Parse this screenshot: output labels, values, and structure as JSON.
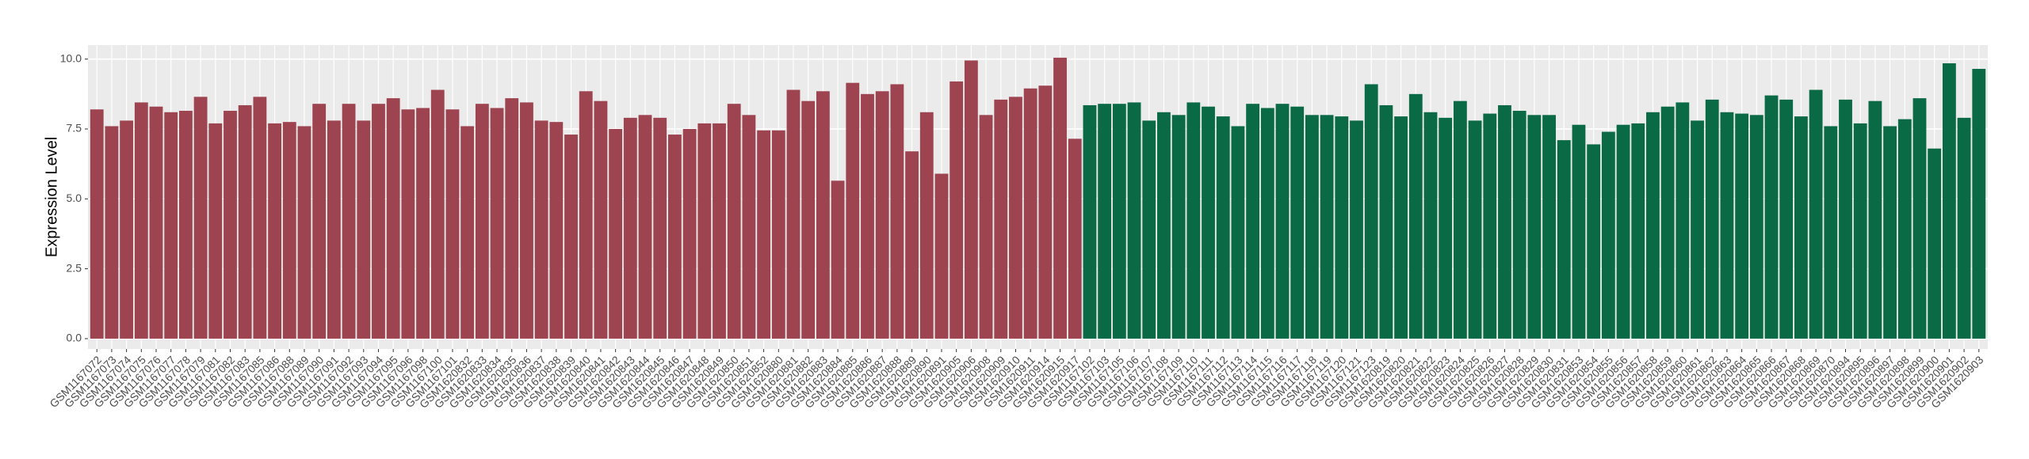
{
  "chart_data": {
    "type": "bar",
    "y_label": "Expression Level",
    "categories": [
      "GSM1167072",
      "GSM1167073",
      "GSM1167074",
      "GSM1167075",
      "GSM1167076",
      "GSM1167077",
      "GSM1167078",
      "GSM1167079",
      "GSM1167081",
      "GSM1167082",
      "GSM1167083",
      "GSM1167085",
      "GSM1167086",
      "GSM1167088",
      "GSM1167089",
      "GSM1167090",
      "GSM1167091",
      "GSM1167092",
      "GSM1167093",
      "GSM1167094",
      "GSM1167095",
      "GSM1167096",
      "GSM1167098",
      "GSM1167100",
      "GSM1167101",
      "GSM1620832",
      "GSM1620833",
      "GSM1620834",
      "GSM1620835",
      "GSM1620836",
      "GSM1620837",
      "GSM1620838",
      "GSM1620839",
      "GSM1620840",
      "GSM1620841",
      "GSM1620842",
      "GSM1620843",
      "GSM1620844",
      "GSM1620845",
      "GSM1620846",
      "GSM1620847",
      "GSM1620848",
      "GSM1620849",
      "GSM1620850",
      "GSM1620851",
      "GSM1620852",
      "GSM1620880",
      "GSM1620881",
      "GSM1620882",
      "GSM1620883",
      "GSM1620884",
      "GSM1620885",
      "GSM1620886",
      "GSM1620887",
      "GSM1620888",
      "GSM1620889",
      "GSM1620890",
      "GSM1620891",
      "GSM1620905",
      "GSM1620906",
      "GSM1620908",
      "GSM1620909",
      "GSM1620910",
      "GSM1620911",
      "GSM1620914",
      "GSM1620915",
      "GSM1620917",
      "GSM1167102",
      "GSM1167103",
      "GSM1167105",
      "GSM1167106",
      "GSM1167107",
      "GSM1167108",
      "GSM1167109",
      "GSM1167110",
      "GSM1167111",
      "GSM1167112",
      "GSM1167113",
      "GSM1167114",
      "GSM1167115",
      "GSM1167116",
      "GSM1167117",
      "GSM1167118",
      "GSM1167119",
      "GSM1167120",
      "GSM1167121",
      "GSM1167123",
      "GSM1620819",
      "GSM1620820",
      "GSM1620821",
      "GSM1620822",
      "GSM1620823",
      "GSM1620824",
      "GSM1620825",
      "GSM1620826",
      "GSM1620827",
      "GSM1620828",
      "GSM1620829",
      "GSM1620830",
      "GSM1620831",
      "GSM1620853",
      "GSM1620854",
      "GSM1620855",
      "GSM1620856",
      "GSM1620857",
      "GSM1620858",
      "GSM1620859",
      "GSM1620860",
      "GSM1620861",
      "GSM1620862",
      "GSM1620863",
      "GSM1620864",
      "GSM1620865",
      "GSM1620866",
      "GSM1620867",
      "GSM1620868",
      "GSM1620869",
      "GSM1620870",
      "GSM1620894",
      "GSM1620895",
      "GSM1620896",
      "GSM1620897",
      "GSM1620898",
      "GSM1620899",
      "GSM1620900",
      "GSM1620901",
      "GSM1620902",
      "GSM1620903"
    ],
    "series": [
      {
        "color": "#9e4350",
        "values": [
          8.2,
          7.6,
          7.8,
          8.45,
          8.3,
          8.1,
          8.15,
          8.65,
          7.7,
          8.15,
          8.35,
          8.65,
          7.7,
          7.75,
          7.6,
          8.4,
          7.8,
          8.4,
          7.8,
          8.4,
          8.6,
          8.2,
          8.25,
          8.9,
          8.2,
          7.6,
          8.4,
          8.25,
          8.6,
          8.45,
          7.8,
          7.75,
          7.3,
          8.85,
          8.5,
          7.5,
          7.9,
          8.0,
          7.9,
          7.3,
          7.5,
          7.7,
          7.7,
          8.4,
          8.0,
          7.45,
          7.45,
          8.9,
          8.5,
          8.85,
          5.65,
          9.15,
          8.75,
          8.85,
          9.1,
          6.7,
          8.1,
          5.9,
          9.2,
          9.95,
          8.0,
          8.55,
          8.65,
          8.95,
          9.05,
          10.05,
          7.15,
          null,
          null,
          null,
          null,
          null,
          null,
          null,
          null,
          null,
          null,
          null,
          null,
          null,
          null,
          null,
          null,
          null,
          null,
          null,
          null,
          null,
          null,
          null,
          null,
          null,
          null,
          null,
          null,
          null,
          null,
          null,
          null,
          null,
          null,
          null,
          null,
          null,
          null,
          null,
          null,
          null,
          null,
          null,
          null,
          null,
          null,
          null,
          null,
          null,
          null,
          null,
          null,
          null,
          null,
          null,
          null,
          null,
          null,
          null,
          null,
          null
        ]
      },
      {
        "color": "#0b6a46",
        "values": [
          null,
          null,
          null,
          null,
          null,
          null,
          null,
          null,
          null,
          null,
          null,
          null,
          null,
          null,
          null,
          null,
          null,
          null,
          null,
          null,
          null,
          null,
          null,
          null,
          null,
          null,
          null,
          null,
          null,
          null,
          null,
          null,
          null,
          null,
          null,
          null,
          null,
          null,
          null,
          null,
          null,
          null,
          null,
          null,
          null,
          null,
          null,
          null,
          null,
          null,
          null,
          null,
          null,
          null,
          null,
          null,
          null,
          null,
          null,
          null,
          null,
          null,
          null,
          null,
          null,
          null,
          null,
          8.35,
          8.4,
          8.4,
          8.45,
          7.8,
          8.1,
          8.0,
          8.45,
          8.3,
          7.95,
          7.6,
          8.4,
          8.25,
          8.4,
          8.3,
          8.0,
          8.0,
          7.95,
          7.8,
          9.1,
          8.35,
          7.95,
          8.75,
          8.1,
          7.9,
          8.5,
          7.8,
          8.05,
          8.35,
          8.15,
          8.0,
          8.0,
          7.1,
          7.65,
          6.95,
          7.4,
          7.65,
          7.7,
          8.1,
          8.3,
          8.45,
          7.8,
          8.55,
          8.1,
          8.05,
          8.0,
          8.7,
          8.55,
          7.95,
          8.9,
          7.6,
          8.55,
          7.7,
          8.5,
          7.6,
          7.85,
          8.6,
          6.8,
          9.85,
          7.9,
          9.65
        ]
      }
    ],
    "ylim": [
      -0.37,
      10.5
    ],
    "yticks": [
      {
        "value": 0,
        "label": "0.0"
      },
      {
        "value": 2.5,
        "label": "2.5"
      },
      {
        "value": 5,
        "label": "5.0"
      },
      {
        "value": 7.5,
        "label": "7.5"
      },
      {
        "value": 10,
        "label": "10.0"
      }
    ],
    "grid": true
  }
}
